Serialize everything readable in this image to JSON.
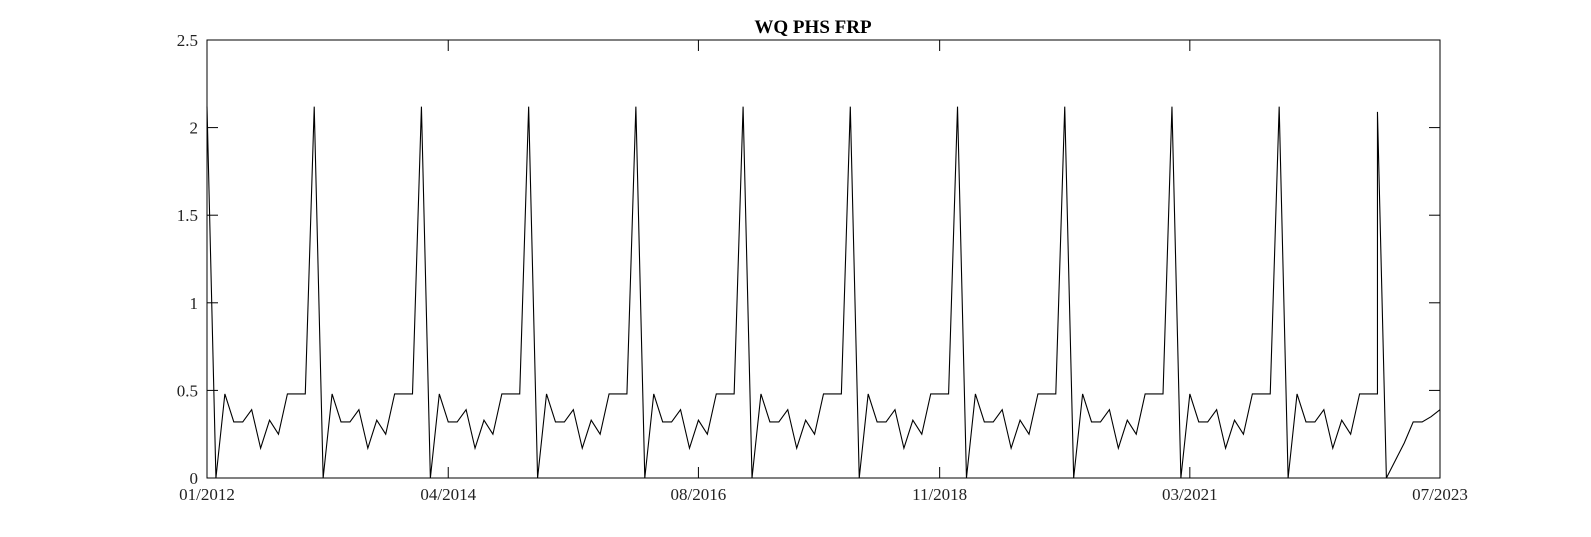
{
  "chart_data": {
    "type": "line",
    "title": "WQ PHS FRP",
    "xlabel": "",
    "ylabel": "",
    "ylim": [
      0,
      2.5
    ],
    "xlim": [
      "01/2012",
      "07/2023"
    ],
    "grid": false,
    "yticks": [
      "0",
      "0.5",
      "1",
      "1.5",
      "2",
      "2.5"
    ],
    "xticks": [
      "01/2012",
      "04/2014",
      "08/2016",
      "11/2018",
      "03/2021",
      "07/2023"
    ],
    "series": [
      {
        "color": "#000000",
        "cycle_years": [
          2012,
          2013,
          2014,
          2015,
          2016,
          2017,
          2018,
          2019,
          2020,
          2021,
          2022
        ],
        "cycle_months": [
          "01",
          "02",
          "03",
          "04",
          "05",
          "06",
          "07",
          "08",
          "09",
          "10",
          "11",
          "12"
        ],
        "cycle_values": [
          2.12,
          0,
          0.48,
          0.32,
          0.32,
          0.39,
          0.17,
          0.33,
          0.25,
          0.48,
          0.48,
          0.48
        ],
        "final_peak_2022_12": 2.09,
        "tail_dates": [
          "2023-01",
          "2023-02",
          "2023-03",
          "2023-04",
          "2023-05",
          "2023-06",
          "2023-07"
        ],
        "tail_values": [
          0,
          0.1,
          0.2,
          0.32,
          0.32,
          0.35,
          0.39
        ]
      }
    ]
  }
}
